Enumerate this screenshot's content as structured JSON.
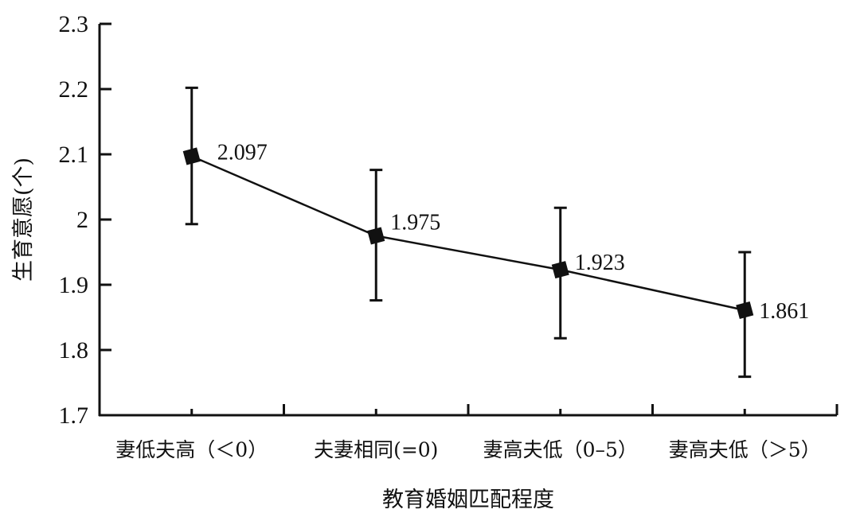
{
  "chart_data": {
    "type": "line",
    "title": "",
    "xlabel": "教育婚姻匹配程度",
    "ylabel": "生育意愿(个)",
    "categories": [
      "妻低夫高（＜0）",
      "夫妻相同(=0)",
      "妻高夫低（0–5）",
      "妻高夫低（＞5）"
    ],
    "series": [
      {
        "name": "生育意愿",
        "values": [
          2.097,
          1.975,
          1.923,
          1.861
        ],
        "labels": [
          "2.097",
          "1.975",
          "1.923",
          "1.861"
        ],
        "error_upper": [
          2.202,
          2.076,
          2.018,
          1.95
        ],
        "error_lower": [
          1.993,
          1.876,
          1.818,
          1.759
        ]
      }
    ],
    "ylim": [
      1.7,
      2.3
    ],
    "yticks": [
      1.7,
      1.8,
      1.9,
      2.0,
      2.1,
      2.2,
      2.3
    ],
    "ytick_labels": [
      "1.7",
      "1.8",
      "1.9",
      "2",
      "2.1",
      "2.2",
      "2.3"
    ],
    "grid": false,
    "marker": "square",
    "color": "#111111"
  }
}
